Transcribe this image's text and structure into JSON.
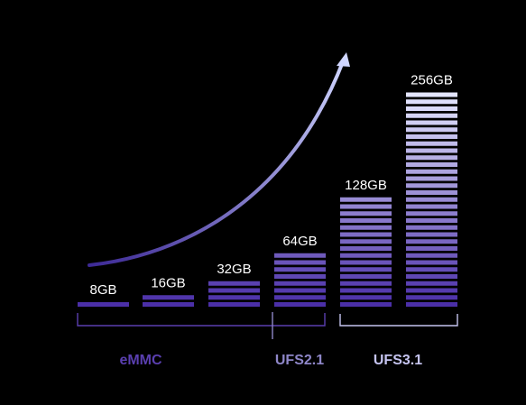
{
  "chart_data": {
    "type": "bar",
    "categories": [
      "8GB",
      "16GB",
      "32GB",
      "64GB",
      "128GB",
      "256GB"
    ],
    "values": [
      8,
      16,
      32,
      64,
      128,
      256
    ],
    "stripe_counts": [
      1,
      2,
      4,
      8,
      16,
      31
    ],
    "groups": [
      {
        "label": "eMMC",
        "members": [
          0,
          1,
          2,
          3
        ],
        "color": "#5a3fb0"
      },
      {
        "label": "UFS2.1",
        "members": [
          3,
          4
        ],
        "color": "#8e86c8"
      },
      {
        "label": "UFS3.1",
        "members": [
          4,
          5
        ],
        "color": "#c5c4f0"
      }
    ],
    "colors": {
      "background": "#000000",
      "stripe_top": "#e4e6ff",
      "stripe_bottom": "#4b2fa8",
      "arrow_start": "#3d2a96",
      "arrow_end": "#d0d6ff",
      "label": "#ffffff"
    },
    "trend_arrow": "growth-arrow"
  }
}
